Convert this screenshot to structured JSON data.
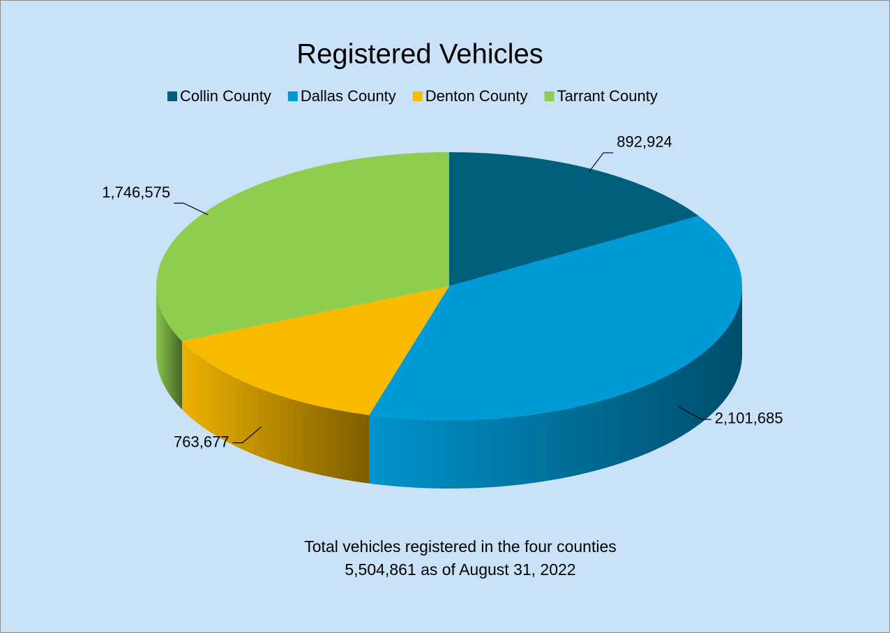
{
  "chart_data": {
    "type": "pie3d",
    "title": "Registered Vehicles",
    "categories": [
      "Collin County",
      "Dallas County",
      "Denton County",
      "Tarrant County"
    ],
    "values": [
      892924,
      2101685,
      763677,
      1746575
    ],
    "value_labels": [
      "892,924",
      "2,101,685",
      "763,677",
      "1,746,575"
    ],
    "colors": [
      "#005f7a",
      "#009bd6",
      "#f9bb00",
      "#8fcd4f"
    ],
    "legend": "top",
    "annotations": [
      "Total vehicles registered in the four counties",
      "5,504,861 as of August 31, 2022"
    ]
  }
}
